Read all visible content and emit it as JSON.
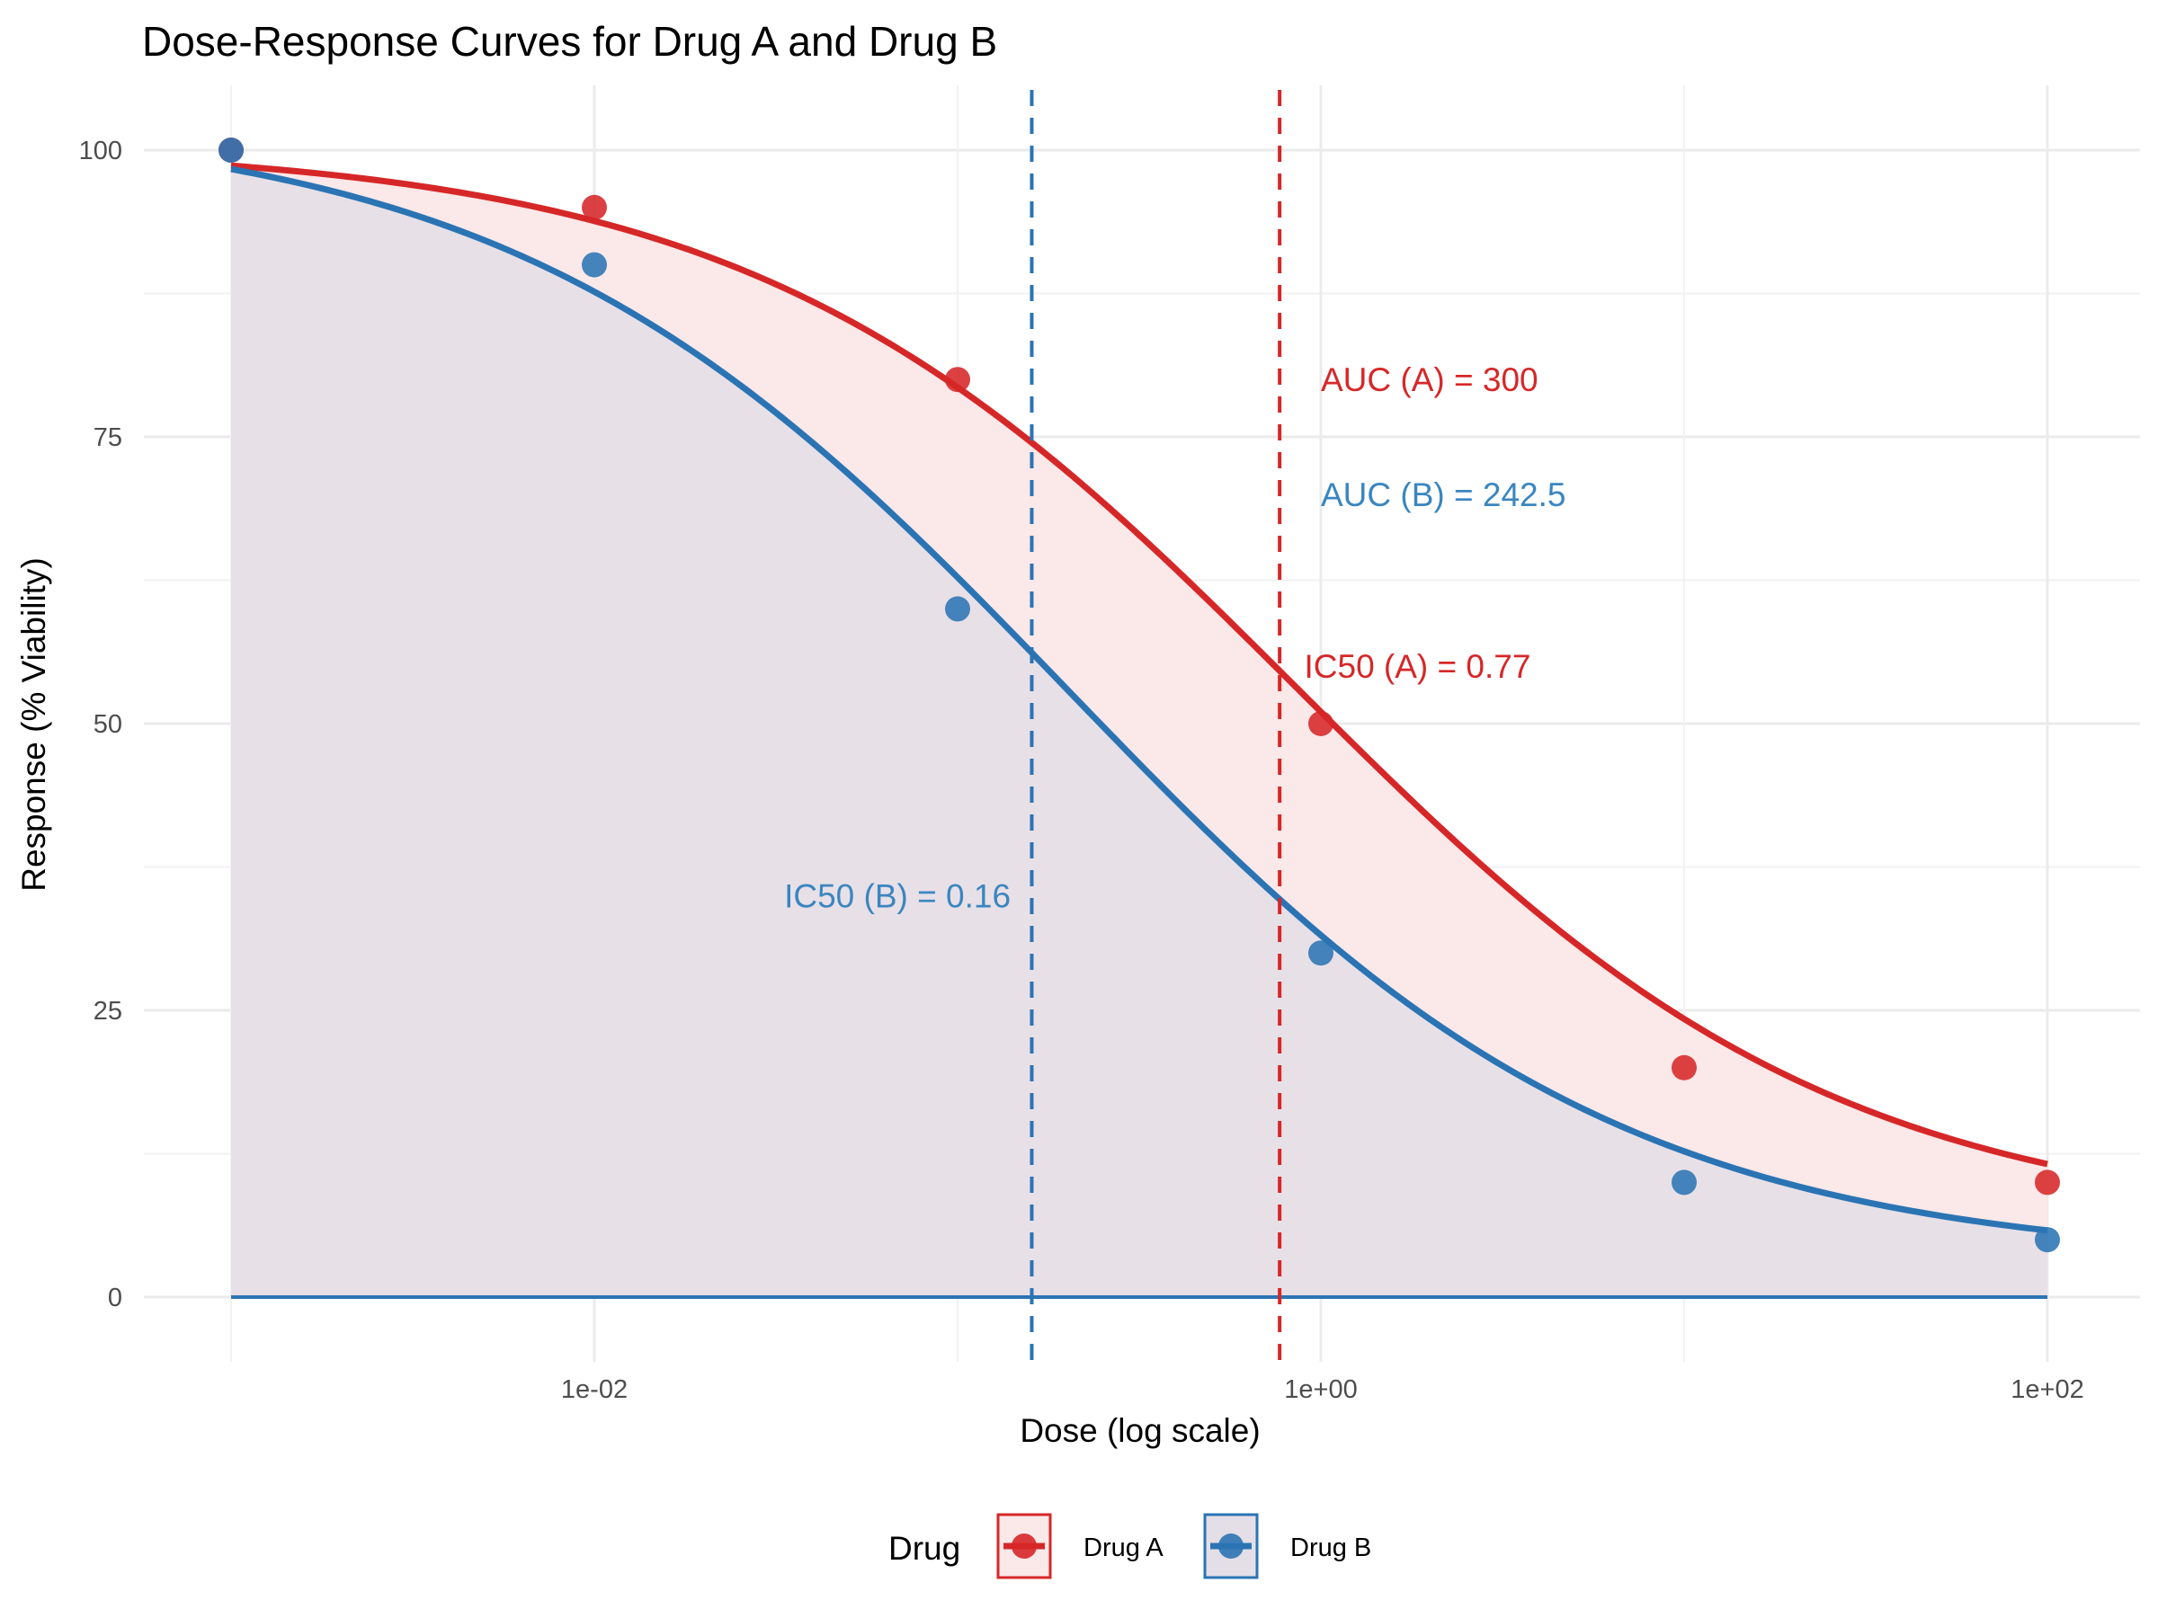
{
  "chart_data": {
    "type": "line",
    "title": "Dose-Response Curves for Drug A and Drug B",
    "xlabel": "Dose (log scale)",
    "ylabel": "Response (% Viability)",
    "x_scale": "log10",
    "x": [
      0.001,
      0.01,
      0.1,
      1,
      10,
      100
    ],
    "x_ticks": [
      {
        "value": 0.01,
        "label": "1e-02"
      },
      {
        "value": 1,
        "label": "1e+00"
      },
      {
        "value": 100,
        "label": "1e+02"
      }
    ],
    "y_ticks": [
      0,
      25,
      50,
      75,
      100
    ],
    "ylim": [
      -5,
      105
    ],
    "grid": true,
    "legend_position": "bottom",
    "legend_title": "Drug",
    "series": [
      {
        "name": "Drug A",
        "color": "#d62728",
        "fill": "#fbe8e8",
        "values": [
          100,
          95,
          80,
          50,
          20,
          10
        ],
        "fit": {
          "top": 100.5,
          "bottom": 6,
          "ec50": 0.85,
          "hill": 0.58
        },
        "ic50": 0.77,
        "auc": 300
      },
      {
        "name": "Drug B",
        "color": "#2b74b4",
        "fill": "#e4dee6",
        "values": [
          100,
          90,
          60,
          30,
          10,
          5
        ],
        "fit": {
          "top": 103,
          "bottom": 3,
          "ec50": 0.2,
          "hill": 0.57
        },
        "ic50": 0.16,
        "auc": 242.5
      }
    ],
    "annotations": [
      {
        "text": "AUC (A) = 300",
        "color": "#d62728",
        "x": 1.0,
        "y": 80,
        "anchor": "start"
      },
      {
        "text": "AUC (B) = 242.5",
        "color": "#3a86c0",
        "x": 1.0,
        "y": 70,
        "anchor": "start"
      },
      {
        "text": "IC50 (A) = 0.77",
        "color": "#d62728",
        "x": 0.9,
        "y": 55,
        "anchor": "start"
      },
      {
        "text": "IC50 (B) = 0.16",
        "color": "#3a86c0",
        "x": 0.14,
        "y": 35,
        "anchor": "end"
      }
    ]
  }
}
